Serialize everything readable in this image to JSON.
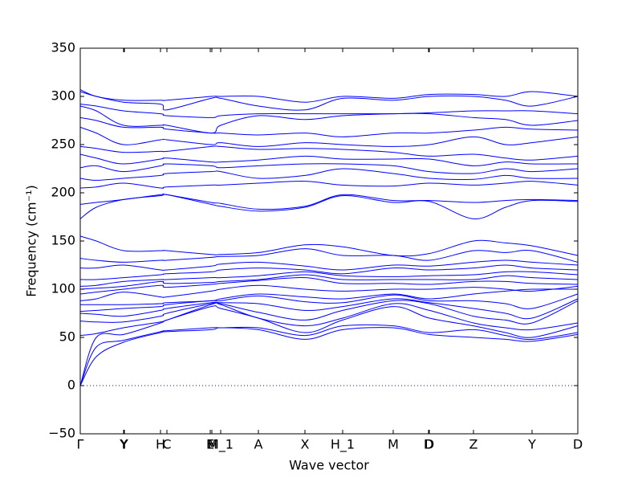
{
  "chart_data": {
    "type": "line",
    "xlabel": "Wave vector",
    "ylabel": "Frequency (cm⁻¹)",
    "color": "#0000ff",
    "hline": 0,
    "xlim": [
      0,
      6.2
    ],
    "ylim": [
      -50,
      350
    ],
    "xticks": [
      {
        "value": 0,
        "label": "Γ"
      },
      {
        "value": 0.54,
        "label": "Y"
      },
      {
        "value": 0.55,
        "label": "Y"
      },
      {
        "value": 1.0,
        "label": "H"
      },
      {
        "value": 1.08,
        "label": "C"
      },
      {
        "value": 1.62,
        "label": "E"
      },
      {
        "value": 1.64,
        "label": "M"
      },
      {
        "value": 1.75,
        "label": "M_1"
      },
      {
        "value": 2.22,
        "label": "A"
      },
      {
        "value": 2.8,
        "label": "X"
      },
      {
        "value": 3.27,
        "label": "H_1"
      },
      {
        "value": 3.9,
        "label": "M"
      },
      {
        "value": 4.34,
        "label": "D"
      },
      {
        "value": 4.35,
        "label": "D"
      },
      {
        "value": 4.9,
        "label": "Z"
      },
      {
        "value": 5.63,
        "label": "Y"
      },
      {
        "value": 6.2,
        "label": "D"
      }
    ],
    "yticks": [
      {
        "value": -50,
        "label": "−50"
      },
      0,
      50,
      100,
      150,
      200,
      250,
      300,
      350
    ],
    "x": [
      0,
      0.2,
      0.54,
      1.0,
      1.08,
      1.63,
      1.75,
      2.22,
      2.8,
      3.27,
      3.9,
      4.35,
      4.9,
      5.3,
      5.63,
      6.2
    ],
    "series": [
      {
        "values": [
          0,
          30,
          45,
          55,
          56,
          58,
          60,
          58,
          48,
          58,
          60,
          53,
          50,
          48,
          46,
          53
        ]
      },
      {
        "values": [
          0,
          40,
          47,
          56,
          57,
          60,
          60,
          60,
          52,
          62,
          62,
          55,
          58,
          52,
          48,
          55
        ]
      },
      {
        "values": [
          0,
          50,
          53,
          65,
          68,
          82,
          80,
          70,
          55,
          68,
          82,
          70,
          62,
          55,
          50,
          62
        ]
      },
      {
        "values": [
          52,
          54,
          60,
          66,
          68,
          84,
          84,
          70,
          62,
          70,
          85,
          78,
          65,
          60,
          58,
          65
        ]
      },
      {
        "values": [
          67,
          66,
          66,
          72,
          75,
          85,
          85,
          76,
          68,
          78,
          88,
          85,
          72,
          68,
          65,
          88
        ]
      },
      {
        "values": [
          75,
          74,
          72,
          78,
          80,
          86,
          86,
          85,
          78,
          82,
          90,
          86,
          80,
          75,
          70,
          90
        ]
      },
      {
        "values": [
          77,
          78,
          80,
          82,
          84,
          88,
          88,
          93,
          87,
          86,
          94,
          88,
          88,
          85,
          80,
          95
        ]
      },
      {
        "values": [
          84,
          84,
          84,
          85,
          86,
          88,
          90,
          95,
          92,
          90,
          95,
          90,
          95,
          98,
          100,
          100
        ]
      },
      {
        "values": [
          88,
          90,
          97,
          92,
          92,
          98,
          100,
          104,
          100,
          98,
          100,
          100,
          102,
          100,
          98,
          103
        ]
      },
      {
        "values": [
          95,
          97,
          100,
          104,
          102,
          105,
          106,
          109,
          112,
          106,
          106,
          105,
          108,
          108,
          106,
          105
        ]
      },
      {
        "values": [
          100,
          101,
          103,
          108,
          106,
          107,
          108,
          110,
          115,
          110,
          110,
          110,
          110,
          114,
          112,
          110
        ]
      },
      {
        "values": [
          103,
          104,
          108,
          110,
          110,
          112,
          112,
          114,
          118,
          114,
          113,
          114,
          115,
          118,
          118,
          115
        ]
      },
      {
        "values": [
          110,
          110,
          112,
          115,
          116,
          118,
          120,
          122,
          120,
          116,
          122,
          120,
          122,
          125,
          122,
          120
        ]
      },
      {
        "values": [
          122,
          122,
          125,
          120,
          120,
          124,
          126,
          128,
          124,
          120,
          125,
          124,
          128,
          130,
          128,
          125
        ]
      },
      {
        "values": [
          132,
          130,
          128,
          130,
          130,
          133,
          134,
          135,
          142,
          135,
          135,
          130,
          140,
          138,
          140,
          128
        ]
      },
      {
        "values": [
          155,
          150,
          140,
          140,
          140,
          136,
          136,
          138,
          146,
          144,
          135,
          137,
          150,
          148,
          145,
          135
        ]
      },
      {
        "values": [
          173,
          185,
          193,
          197,
          198,
          188,
          186,
          181,
          185,
          197,
          190,
          191,
          173,
          185,
          192,
          191
        ]
      },
      {
        "values": [
          188,
          190,
          193,
          198,
          198,
          190,
          189,
          183,
          186,
          198,
          192,
          192,
          190,
          192,
          193,
          192
        ]
      },
      {
        "values": [
          205,
          206,
          210,
          205,
          206,
          208,
          208,
          210,
          212,
          208,
          207,
          210,
          208,
          210,
          212,
          208
        ]
      },
      {
        "values": [
          215,
          213,
          215,
          218,
          220,
          222,
          222,
          215,
          218,
          225,
          220,
          215,
          214,
          218,
          215,
          215
        ]
      },
      {
        "values": [
          226,
          228,
          222,
          228,
          230,
          228,
          226,
          228,
          230,
          230,
          228,
          222,
          220,
          225,
          222,
          225
        ]
      },
      {
        "values": [
          240,
          236,
          230,
          235,
          236,
          232,
          232,
          234,
          238,
          235,
          235,
          235,
          228,
          232,
          230,
          230
        ]
      },
      {
        "values": [
          248,
          246,
          242,
          243,
          243,
          248,
          248,
          245,
          246,
          245,
          242,
          238,
          240,
          236,
          234,
          238
        ]
      },
      {
        "values": [
          268,
          262,
          250,
          255,
          255,
          250,
          252,
          248,
          252,
          250,
          248,
          250,
          258,
          250,
          252,
          258
        ]
      },
      {
        "values": [
          278,
          275,
          268,
          268,
          266,
          262,
          262,
          260,
          262,
          258,
          262,
          262,
          265,
          268,
          266,
          265
        ]
      },
      {
        "values": [
          290,
          285,
          270,
          270,
          270,
          262,
          270,
          280,
          276,
          280,
          282,
          282,
          278,
          276,
          270,
          275
        ]
      },
      {
        "values": [
          292,
          290,
          285,
          282,
          280,
          278,
          280,
          282,
          282,
          282,
          282,
          283,
          285,
          285,
          285,
          282
        ]
      },
      {
        "values": [
          305,
          300,
          294,
          292,
          286,
          298,
          298,
          290,
          286,
          298,
          296,
          300,
          300,
          296,
          290,
          300
        ]
      },
      {
        "values": [
          307,
          300,
          296,
          296,
          296,
          300,
          300,
          300,
          294,
          300,
          298,
          302,
          302,
          300,
          305,
          300
        ]
      }
    ]
  }
}
